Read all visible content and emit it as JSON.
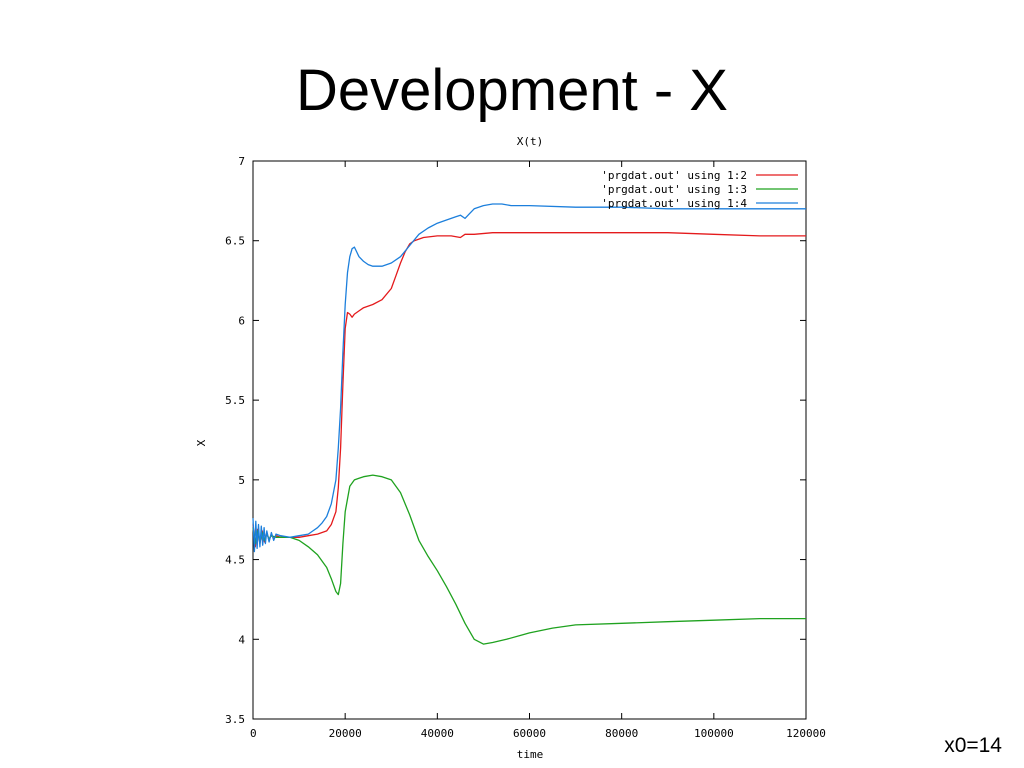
{
  "slide": {
    "title": "Development - X",
    "caption": "x0=14"
  },
  "chart_data": {
    "type": "line",
    "title": "X(t)",
    "xlabel": "time",
    "ylabel": "X",
    "xlim": [
      0,
      120000
    ],
    "ylim": [
      3.5,
      7
    ],
    "x_ticks": [
      0,
      20000,
      40000,
      60000,
      80000,
      100000,
      120000
    ],
    "x_tick_labels": [
      "0",
      "20000",
      "40000",
      "60000",
      "80000",
      "100000",
      "120000"
    ],
    "y_ticks": [
      3.5,
      4,
      4.5,
      5,
      5.5,
      6,
      6.5,
      7
    ],
    "y_tick_labels": [
      "3.5",
      "4",
      "4.5",
      "5",
      "5.5",
      "6",
      "6.5",
      "7"
    ],
    "grid": false,
    "legend_position": "top-right",
    "series": [
      {
        "name": "'prgdat.out' using 1:2",
        "color": "#e41a1c",
        "x": [
          0,
          500,
          1000,
          1500,
          2000,
          2500,
          3000,
          3500,
          4000,
          4500,
          5000,
          6000,
          8000,
          10000,
          12000,
          14000,
          16000,
          17000,
          18000,
          18500,
          19000,
          19500,
          20000,
          20500,
          21000,
          21500,
          22000,
          23000,
          24000,
          26000,
          28000,
          30000,
          31000,
          32000,
          33000,
          34000,
          35000,
          37000,
          40000,
          43000,
          45000,
          46000,
          48000,
          52000,
          56000,
          60000,
          70000,
          80000,
          90000,
          100000,
          110000,
          120000
        ],
        "y": [
          4.72,
          4.58,
          4.69,
          4.6,
          4.68,
          4.61,
          4.67,
          4.62,
          4.66,
          4.63,
          4.65,
          4.64,
          4.64,
          4.64,
          4.65,
          4.66,
          4.68,
          4.72,
          4.8,
          4.95,
          5.2,
          5.6,
          5.95,
          6.05,
          6.04,
          6.02,
          6.04,
          6.06,
          6.08,
          6.1,
          6.13,
          6.2,
          6.28,
          6.36,
          6.43,
          6.48,
          6.5,
          6.52,
          6.53,
          6.53,
          6.52,
          6.54,
          6.54,
          6.55,
          6.55,
          6.55,
          6.55,
          6.55,
          6.55,
          6.54,
          6.53,
          6.53
        ]
      },
      {
        "name": "'prgdat.out' using 1:3",
        "color": "#1fa21f",
        "x": [
          0,
          500,
          1000,
          1500,
          2000,
          2500,
          3000,
          3500,
          4000,
          5000,
          6000,
          8000,
          10000,
          12000,
          14000,
          16000,
          17000,
          18000,
          18500,
          19000,
          19500,
          20000,
          21000,
          22000,
          23000,
          24000,
          26000,
          28000,
          30000,
          32000,
          34000,
          36000,
          38000,
          40000,
          42000,
          44000,
          46000,
          48000,
          50000,
          52000,
          55000,
          60000,
          65000,
          70000,
          80000,
          90000,
          100000,
          110000,
          120000
        ],
        "y": [
          4.7,
          4.6,
          4.68,
          4.61,
          4.67,
          4.62,
          4.66,
          4.63,
          4.65,
          4.64,
          4.64,
          4.64,
          4.62,
          4.58,
          4.53,
          4.45,
          4.38,
          4.3,
          4.28,
          4.35,
          4.6,
          4.8,
          4.96,
          5.0,
          5.01,
          5.02,
          5.03,
          5.02,
          5.0,
          4.92,
          4.78,
          4.62,
          4.52,
          4.43,
          4.33,
          4.22,
          4.1,
          4.0,
          3.97,
          3.98,
          4.0,
          4.04,
          4.07,
          4.09,
          4.1,
          4.11,
          4.12,
          4.13,
          4.13
        ]
      },
      {
        "name": "'prgdat.out' using 1:4",
        "color": "#1c7fdc",
        "x": [
          0,
          300,
          600,
          900,
          1200,
          1500,
          1800,
          2100,
          2400,
          2700,
          3000,
          3500,
          4000,
          4500,
          5000,
          6000,
          8000,
          10000,
          12000,
          13000,
          14000,
          15000,
          16000,
          17000,
          18000,
          18500,
          19000,
          19500,
          20000,
          20500,
          21000,
          21500,
          22000,
          22500,
          23000,
          24000,
          25000,
          26000,
          27000,
          28000,
          30000,
          32000,
          34000,
          36000,
          38000,
          40000,
          42000,
          44000,
          45000,
          46000,
          47000,
          48000,
          50000,
          52000,
          54000,
          56000,
          60000,
          70000,
          80000,
          90000,
          100000,
          110000,
          120000
        ],
        "y": [
          4.76,
          4.55,
          4.74,
          4.57,
          4.72,
          4.58,
          4.71,
          4.59,
          4.7,
          4.6,
          4.68,
          4.61,
          4.67,
          4.62,
          4.66,
          4.65,
          4.64,
          4.65,
          4.66,
          4.68,
          4.7,
          4.73,
          4.77,
          4.85,
          5.0,
          5.2,
          5.45,
          5.8,
          6.1,
          6.3,
          6.4,
          6.45,
          6.46,
          6.43,
          6.4,
          6.37,
          6.35,
          6.34,
          6.34,
          6.34,
          6.36,
          6.4,
          6.47,
          6.54,
          6.58,
          6.61,
          6.63,
          6.65,
          6.66,
          6.64,
          6.67,
          6.7,
          6.72,
          6.73,
          6.73,
          6.72,
          6.72,
          6.71,
          6.71,
          6.7,
          6.7,
          6.7,
          6.7
        ]
      }
    ]
  }
}
